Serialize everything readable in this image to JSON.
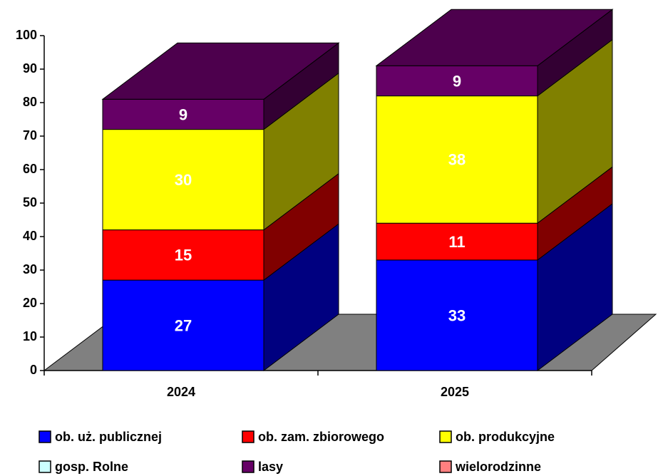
{
  "chart_data": {
    "type": "bar3d_stacked",
    "categories": [
      "2024",
      "2025"
    ],
    "series": [
      {
        "name": "ob. uż. publicznej",
        "color": "#0000ff",
        "values": [
          27,
          33
        ]
      },
      {
        "name": "ob. zam. zbiorowego",
        "color": "#ff0000",
        "values": [
          15,
          11
        ]
      },
      {
        "name": "ob. produkcyjne",
        "color": "#ffff00",
        "values": [
          30,
          38
        ]
      },
      {
        "name": "gosp. Rolne",
        "color": "#ccffff",
        "values": [
          0,
          0
        ]
      },
      {
        "name": "lasy",
        "color": "#660066",
        "values": [
          9,
          9
        ]
      },
      {
        "name": "wielorodzinne",
        "color": "#ff8080",
        "values": [
          0,
          0
        ]
      }
    ],
    "ylim": [
      0,
      100
    ],
    "yticks": [
      0,
      10,
      20,
      30,
      40,
      50,
      60,
      70,
      80,
      90,
      100
    ]
  }
}
